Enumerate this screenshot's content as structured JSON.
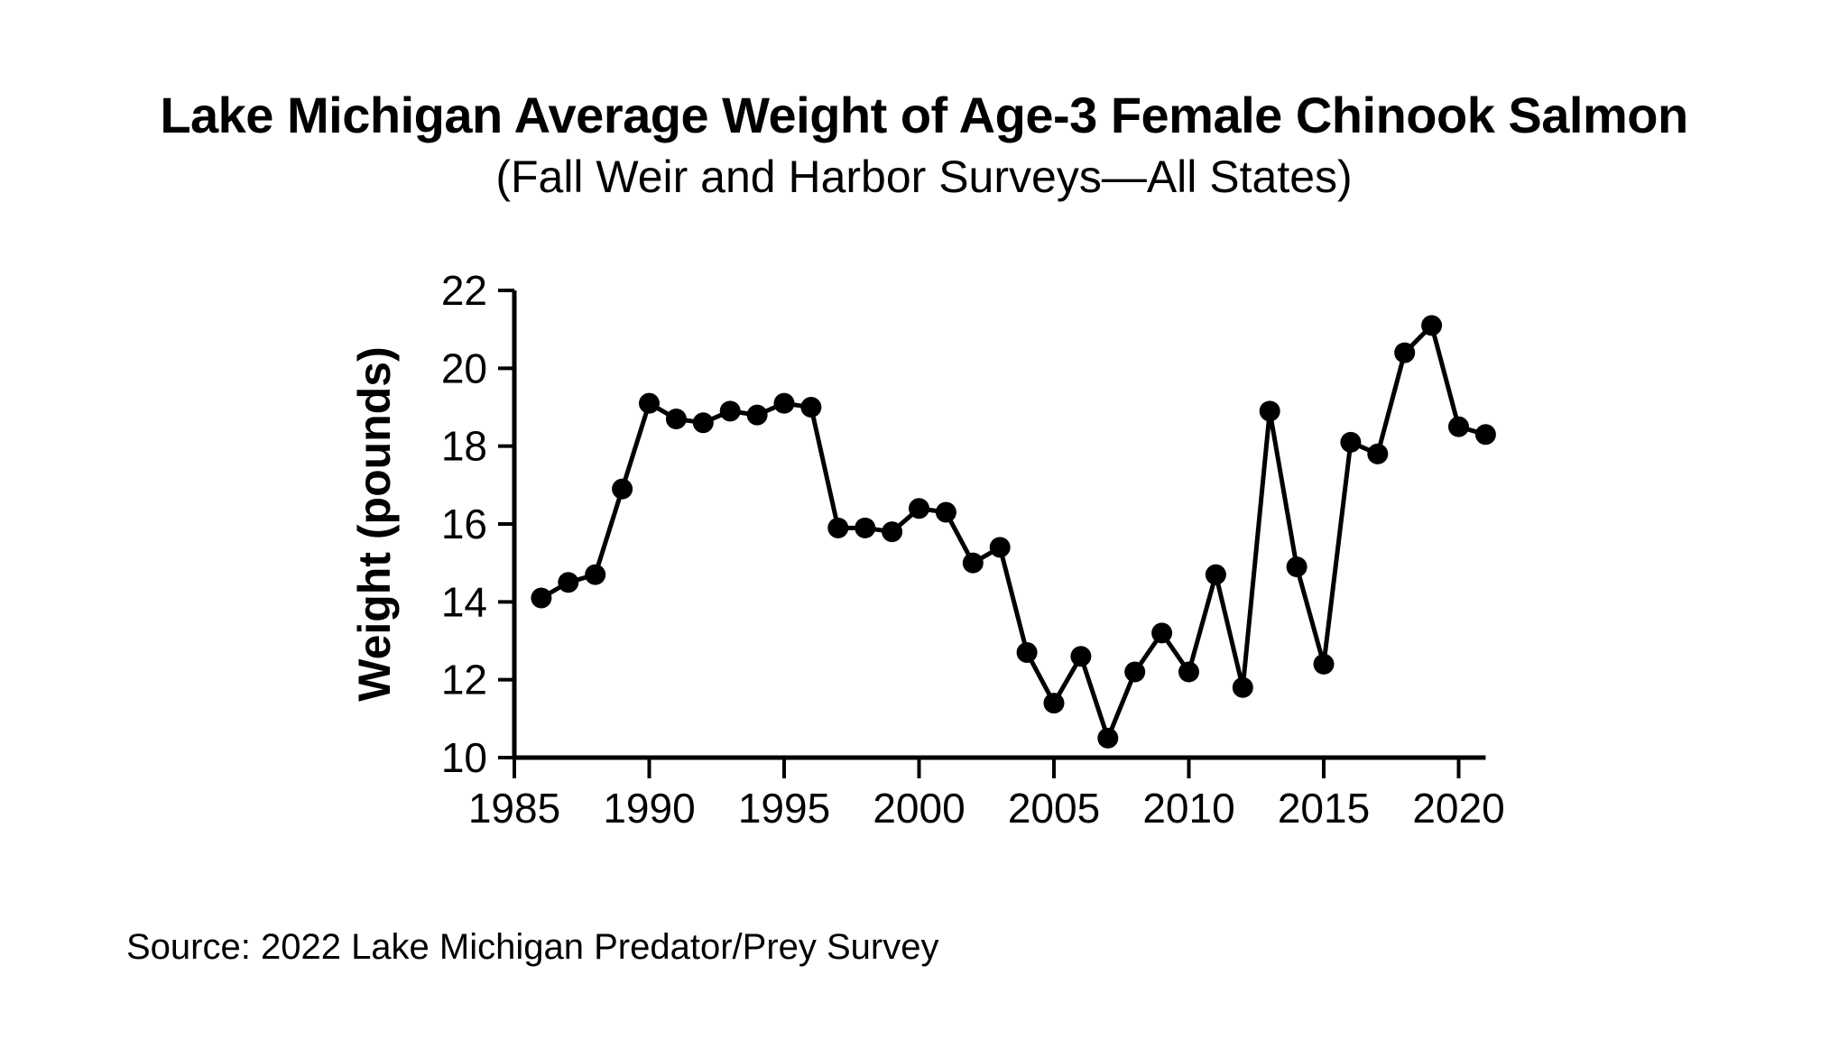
{
  "chart_data": {
    "type": "line",
    "title": "Lake Michigan Average Weight of Age-3 Female Chinook Salmon",
    "subtitle": "(Fall Weir and Harbor Surveys—All States)",
    "ylabel": "Weight (pounds)",
    "xlabel": "",
    "series_name": "Average weight of age-3 female Chinook salmon (pounds)",
    "x": [
      1986,
      1987,
      1988,
      1989,
      1990,
      1991,
      1992,
      1993,
      1994,
      1995,
      1996,
      1997,
      1998,
      1999,
      2000,
      2001,
      2002,
      2003,
      2004,
      2005,
      2006,
      2007,
      2008,
      2009,
      2010,
      2011,
      2012,
      2013,
      2014,
      2015,
      2016,
      2017,
      2018,
      2019,
      2020,
      2021
    ],
    "values": [
      14.1,
      14.5,
      14.7,
      16.9,
      19.1,
      18.7,
      18.6,
      18.9,
      18.8,
      19.1,
      19.0,
      15.9,
      15.9,
      15.8,
      16.4,
      16.3,
      15.0,
      15.4,
      12.7,
      11.4,
      12.6,
      10.5,
      12.2,
      13.2,
      12.2,
      14.7,
      11.8,
      18.9,
      14.9,
      12.4,
      18.1,
      17.8,
      20.4,
      21.1,
      18.5,
      18.3
    ],
    "xlim": [
      1985,
      2021
    ],
    "ylim": [
      10,
      22
    ],
    "xticks": [
      1985,
      1990,
      1995,
      2000,
      2005,
      2010,
      2015,
      2020
    ],
    "yticks": [
      10,
      12,
      14,
      16,
      18,
      20,
      22
    ],
    "grid": false,
    "legend": "none",
    "marker": "circle",
    "line_color": "#000000",
    "marker_color": "#000000",
    "axis_color": "#000000",
    "background": "#ffffff"
  },
  "source": "Source: 2022 Lake Michigan Predator/Prey Survey"
}
